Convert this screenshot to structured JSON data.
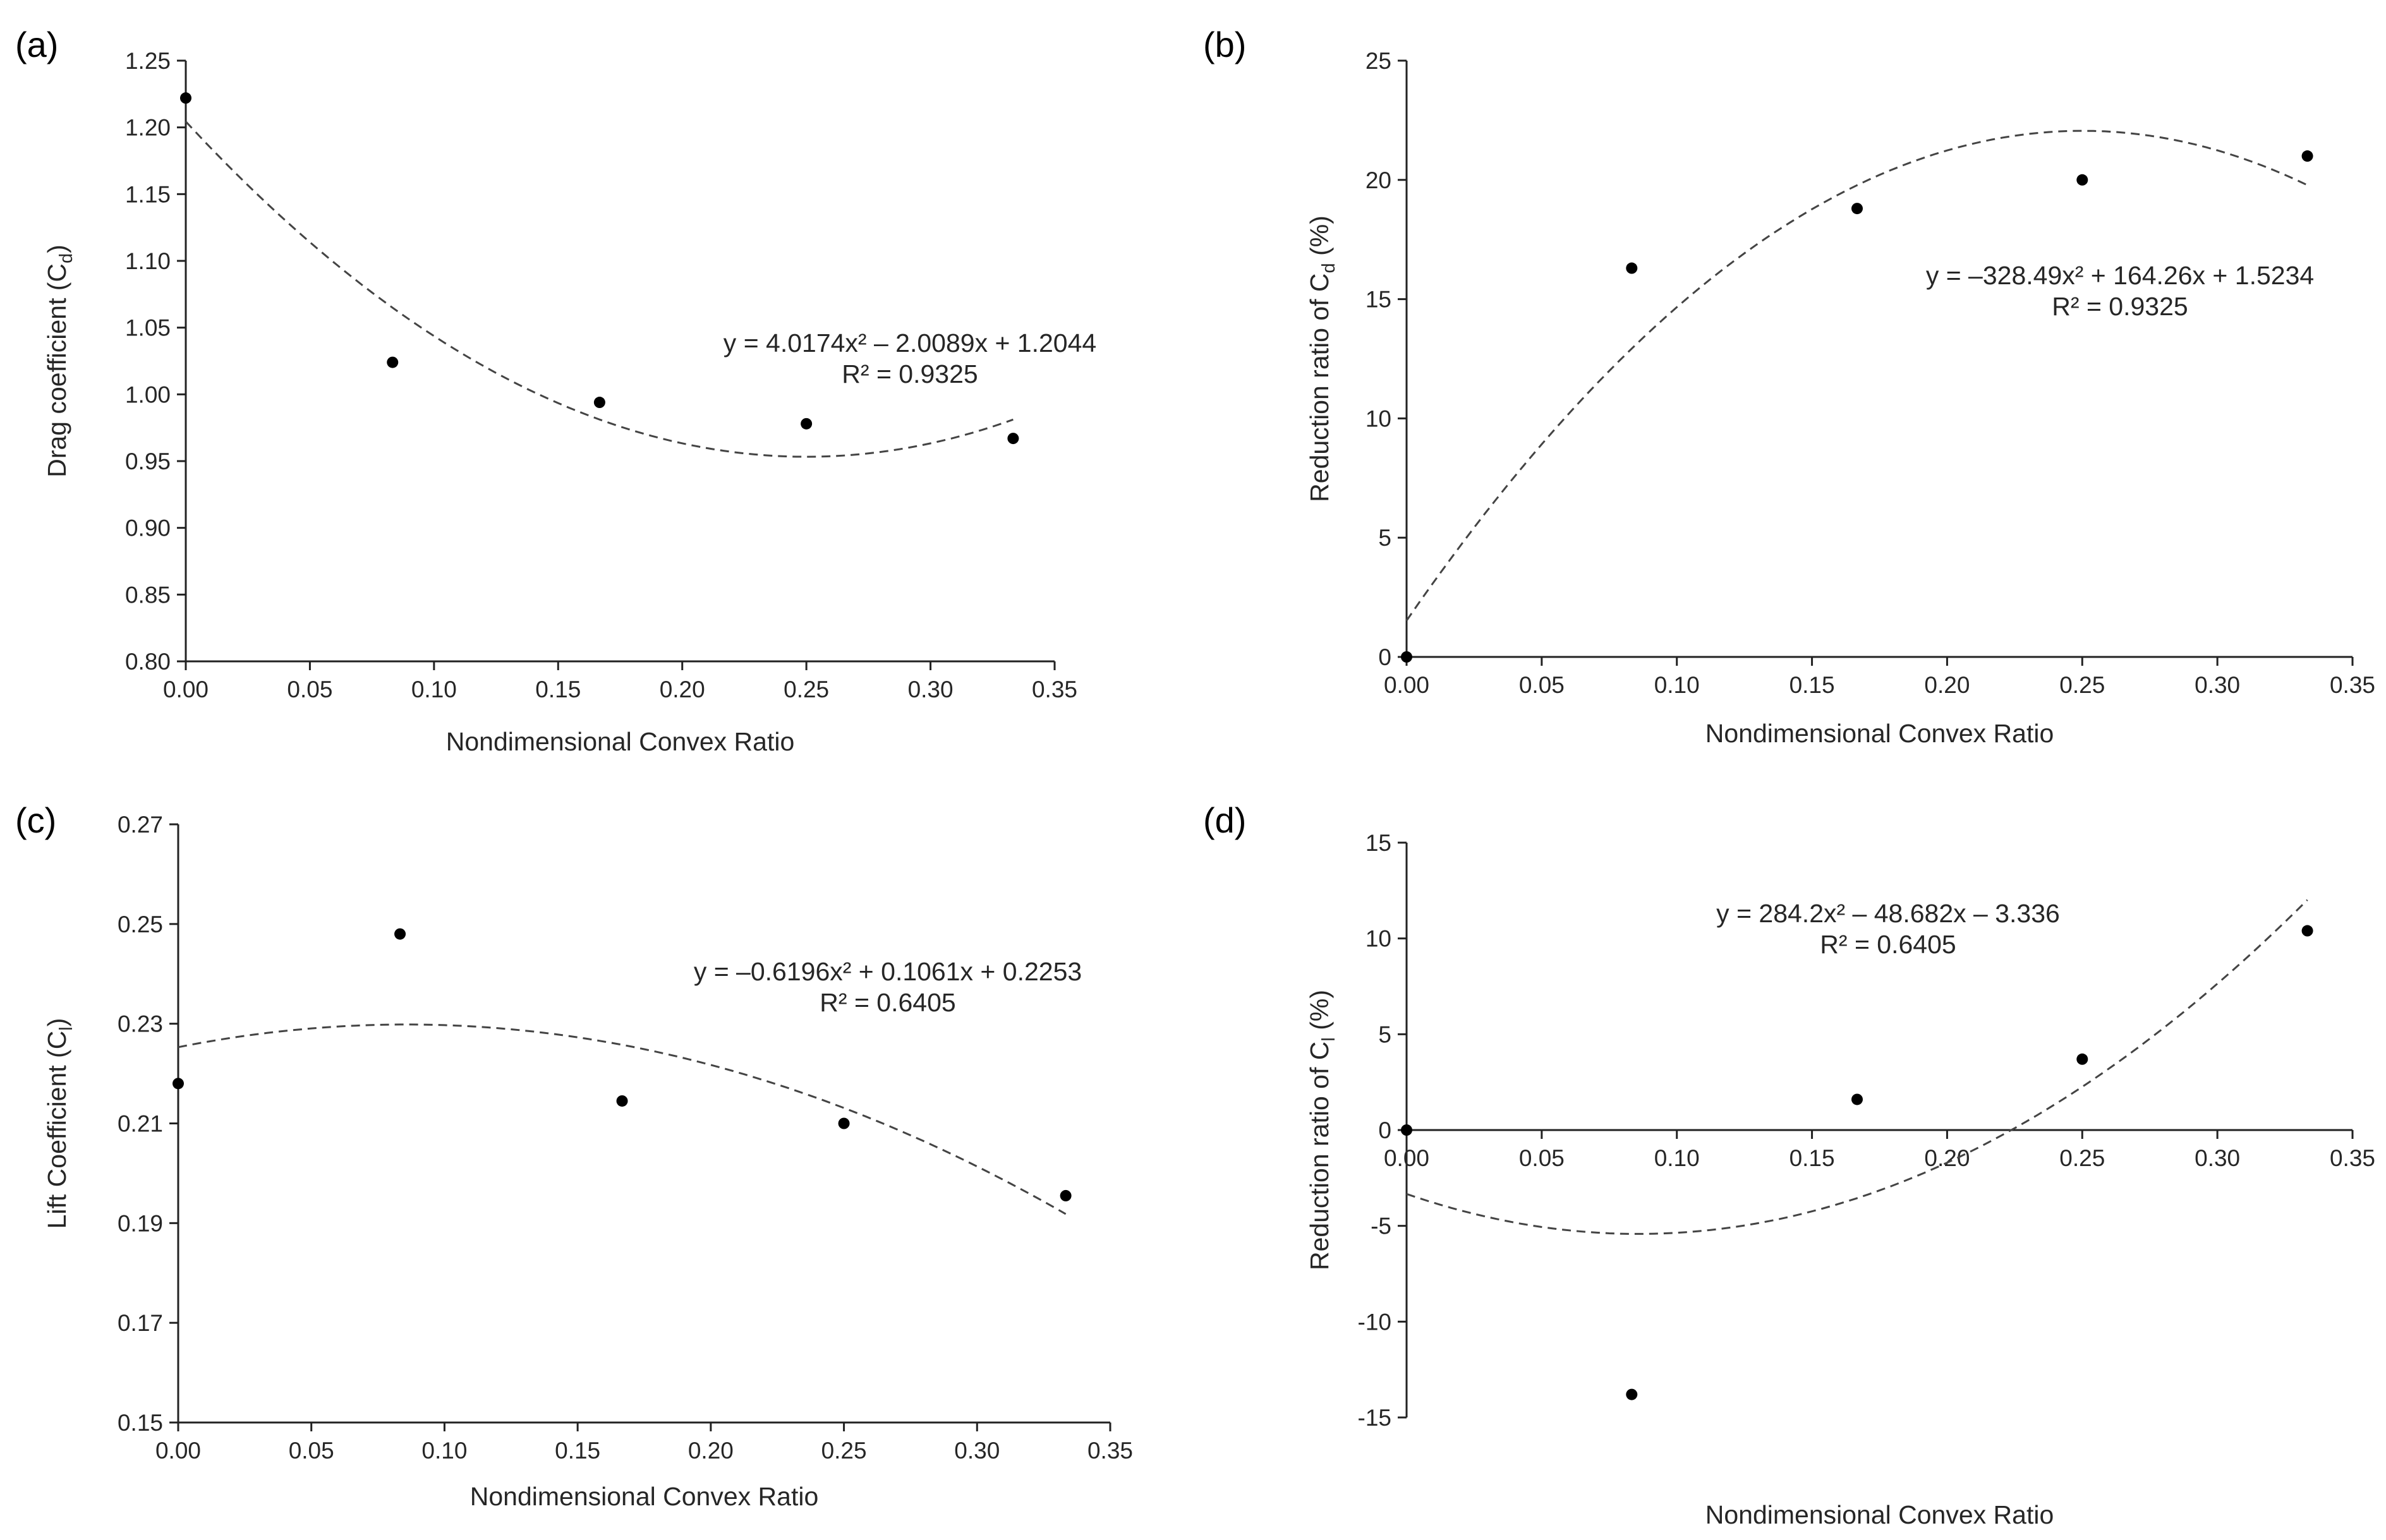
{
  "chart_data": [
    {
      "type": "scatter",
      "panel": "(a)",
      "xlabel": "Nondimensional Convex Ratio",
      "ylabel": "Drag coefficient (C",
      "ylabel_sub": "d",
      "ylabel_end": ")",
      "xlim": [
        0,
        0.35
      ],
      "ylim": [
        0.8,
        1.25
      ],
      "xticks": [
        "0.00",
        "0.05",
        "0.10",
        "0.15",
        "0.20",
        "0.25",
        "0.30",
        "0.35"
      ],
      "yticks": [
        "0.80",
        "0.85",
        "0.90",
        "0.95",
        "1.00",
        "1.05",
        "1.10",
        "1.15",
        "1.20",
        "1.25"
      ],
      "points": {
        "x": [
          0,
          0.0833,
          0.1667,
          0.25,
          0.3333
        ],
        "y": [
          1.222,
          1.024,
          0.994,
          0.978,
          0.967
        ]
      },
      "trend": {
        "a": 4.0174,
        "b": -2.0089,
        "c": 1.2044,
        "xrange": [
          0,
          0.3333
        ]
      },
      "equation": "y = 4.0174x² – 2.0089x + 1.2044",
      "r2": "R² = 0.9325"
    },
    {
      "type": "scatter",
      "panel": "(b)",
      "xlabel": "Nondimensional Convex Ratio",
      "ylabel": "Reduction ratio of C",
      "ylabel_sub": "d",
      "ylabel_end": " (%)",
      "xlim": [
        0,
        0.35
      ],
      "ylim": [
        0,
        25
      ],
      "xticks": [
        "0.00",
        "0.05",
        "0.10",
        "0.15",
        "0.20",
        "0.25",
        "0.30",
        "0.35"
      ],
      "yticks": [
        "0",
        "5",
        "10",
        "15",
        "20",
        "25"
      ],
      "points": {
        "x": [
          0,
          0.0833,
          0.1667,
          0.25,
          0.3333
        ],
        "y": [
          0,
          16.3,
          18.8,
          20.0,
          21.0
        ]
      },
      "trend": {
        "a": -328.49,
        "b": 164.26,
        "c": 1.5234,
        "xrange": [
          0,
          0.3333
        ]
      },
      "equation": "y = –328.49x² + 164.26x + 1.5234",
      "r2": "R² = 0.9325"
    },
    {
      "type": "scatter",
      "panel": "(c)",
      "xlabel": "Nondimensional Convex Ratio",
      "ylabel": "Lift Coefficient (C",
      "ylabel_sub": "l",
      "ylabel_end": ")",
      "xlim": [
        0,
        0.35
      ],
      "ylim": [
        0.15,
        0.27
      ],
      "xticks": [
        "0.00",
        "0.05",
        "0.10",
        "0.15",
        "0.20",
        "0.25",
        "0.30",
        "0.35"
      ],
      "yticks": [
        "0.15",
        "0.17",
        "0.19",
        "0.21",
        "0.23",
        "0.25",
        "0.27"
      ],
      "points": {
        "x": [
          0,
          0.0833,
          0.1667,
          0.25,
          0.3333
        ],
        "y": [
          0.218,
          0.248,
          0.2145,
          0.21,
          0.1955
        ]
      },
      "trend": {
        "a": -0.6196,
        "b": 0.1061,
        "c": 0.2253,
        "xrange": [
          0,
          0.3333
        ]
      },
      "equation": "y = –0.6196x² + 0.1061x + 0.2253",
      "r2": "R² = 0.6405"
    },
    {
      "type": "scatter",
      "panel": "(d)",
      "xlabel": "Nondimensional Convex Ratio",
      "ylabel": "Reduction ratio of C",
      "ylabel_sub": "l",
      "ylabel_end": " (%)",
      "xlim": [
        0,
        0.35
      ],
      "ylim": [
        -15,
        15
      ],
      "xticks": [
        "0.00",
        "0.05",
        "0.10",
        "0.15",
        "0.20",
        "0.25",
        "0.30",
        "0.35"
      ],
      "yticks": [
        "-15",
        "-10",
        "-5",
        "0",
        "5",
        "10",
        "15"
      ],
      "points": {
        "x": [
          0,
          0.0833,
          0.1667,
          0.25,
          0.3333
        ],
        "y": [
          0,
          -13.8,
          1.6,
          3.7,
          10.4
        ]
      },
      "trend": {
        "a": 284.2,
        "b": -48.682,
        "c": -3.336,
        "xrange": [
          0,
          0.3333
        ]
      },
      "equation": "y = 284.2x² – 48.682x – 3.336",
      "r2": "R² = 0.6405"
    }
  ]
}
